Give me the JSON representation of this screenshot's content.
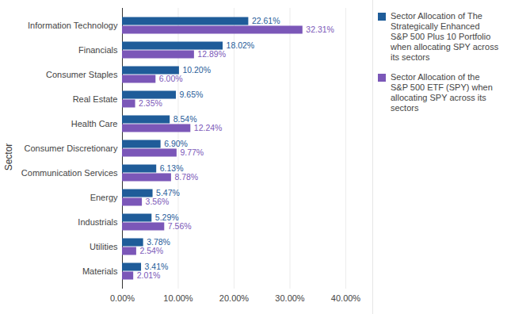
{
  "chart_data": {
    "type": "bar",
    "orientation": "horizontal",
    "ylabel": "Sector",
    "categories": [
      "Information Technology",
      "Financials",
      "Consumer Staples",
      "Real Estate",
      "Health Care",
      "Consumer Discretionary",
      "Communication Services",
      "Energy",
      "Industrials",
      "Utilities",
      "Materials"
    ],
    "series": [
      {
        "name": "Sector Allocation of The Strategically Enhanced S&P 500 Plus 10 Portfolio when allocating SPY across its sectors",
        "color": "#1f5c99",
        "values": [
          22.61,
          18.02,
          10.2,
          9.65,
          8.54,
          6.9,
          6.13,
          5.47,
          5.29,
          3.78,
          3.41
        ],
        "value_labels": [
          "22.61%",
          "18.02%",
          "10.20%",
          "9.65%",
          "8.54%",
          "6.90%",
          "6.13%",
          "5.47%",
          "5.29%",
          "3.78%",
          "3.41%"
        ]
      },
      {
        "name": "Sector Allocation of the S&P 500 ETF (SPY) when allocating SPY across its sectors",
        "color": "#7b57b8",
        "values": [
          32.31,
          12.89,
          6.0,
          2.35,
          12.24,
          9.77,
          8.78,
          3.56,
          7.56,
          2.54,
          2.01
        ],
        "value_labels": [
          "32.31%",
          "12.89%",
          "6.00%",
          "2.35%",
          "12.24%",
          "9.77%",
          "8.78%",
          "3.56%",
          "7.56%",
          "2.54%",
          "2.01%"
        ]
      }
    ],
    "xlim": [
      0,
      40
    ],
    "xticks": [
      {
        "value": 0,
        "label": "0.00%"
      },
      {
        "value": 10,
        "label": "10.00%"
      },
      {
        "value": 20,
        "label": "20.00%"
      },
      {
        "value": 30,
        "label": "30.00%"
      },
      {
        "value": 40,
        "label": "40.00%"
      }
    ],
    "grid": true,
    "data_labels": true,
    "legend": "right"
  }
}
